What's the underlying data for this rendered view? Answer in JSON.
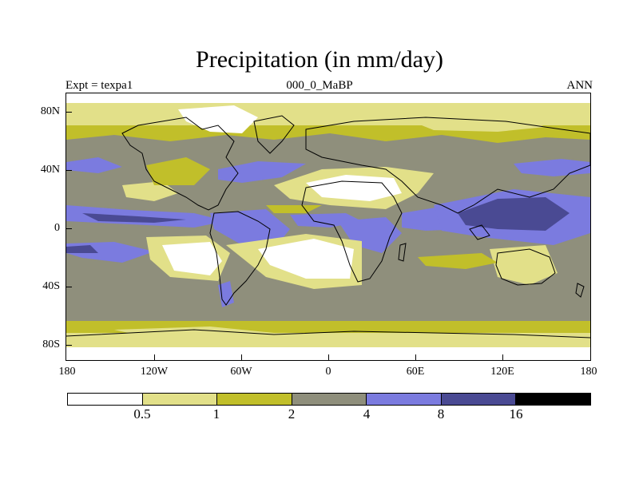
{
  "title": "Precipitation (in mm/day)",
  "subtitle_left": "Expt = texpa1",
  "subtitle_center": "000_0_MaBP",
  "subtitle_right": "ANN",
  "lat_labels": [
    "80N",
    "40N",
    "0",
    "40S",
    "80S"
  ],
  "lon_labels": [
    "180",
    "120W",
    "60W",
    "0",
    "60E",
    "120E",
    "180"
  ],
  "colorbar": {
    "labels": [
      "0.5",
      "1",
      "2",
      "4",
      "8",
      "16"
    ],
    "colors": [
      "#ffffff",
      "#e2e089",
      "#c1bf2a",
      "#8f8f7c",
      "#7b7bdf",
      "#4a4a93",
      "#000000"
    ]
  },
  "palette": {
    "white": "#ffffff",
    "light_yellow": "#e2e089",
    "olive": "#c1bf2a",
    "grey": "#8f8f7c",
    "blue": "#7b7bdf",
    "dark_blue": "#4a4a93"
  }
}
